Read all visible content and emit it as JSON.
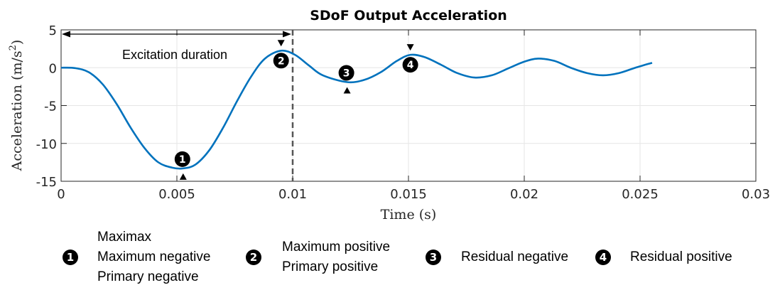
{
  "chart_data": {
    "type": "line",
    "title": "SDoF Output Acceleration",
    "xlabel": "Time (s)",
    "ylabel_main": "Acceleration (m/s",
    "ylabel_sup": "2",
    "ylabel_close": ")",
    "xlim": [
      0,
      0.03
    ],
    "ylim": [
      -15,
      5
    ],
    "xticks": [
      0,
      0.005,
      0.01,
      0.015,
      0.02,
      0.025,
      0.03
    ],
    "xtick_labels": [
      "0",
      "0.005",
      "0.01",
      "0.015",
      "0.02",
      "0.025",
      "0.03"
    ],
    "yticks": [
      5,
      0,
      -5,
      -10,
      -15
    ],
    "ytick_labels": [
      "5",
      "0",
      "-5",
      "-10",
      "-15"
    ],
    "grid": true,
    "series": [
      {
        "name": "SDoF output acceleration",
        "color": "#0072BD",
        "x": [
          0,
          0.0006,
          0.0012,
          0.0018,
          0.0024,
          0.003,
          0.0036,
          0.0042,
          0.0048,
          0.00527,
          0.0058,
          0.0064,
          0.007,
          0.0076,
          0.0082,
          0.0088,
          0.0095,
          0.0101,
          0.0107,
          0.0113,
          0.01235,
          0.0131,
          0.0138,
          0.0145,
          0.01508,
          0.0157,
          0.0164,
          0.0171,
          0.01785,
          0.0186,
          0.0193,
          0.02,
          0.0206,
          0.0213,
          0.022,
          0.0227,
          0.0234,
          0.0241,
          0.0248,
          0.02552
        ],
        "y": [
          0,
          -0.05,
          -0.6,
          -2.2,
          -4.8,
          -7.9,
          -10.6,
          -12.5,
          -13.2,
          -13.3,
          -12.8,
          -10.9,
          -7.9,
          -4.4,
          -1.2,
          1.2,
          2.25,
          1.7,
          0.3,
          -1.0,
          -1.9,
          -1.6,
          -0.6,
          0.9,
          1.7,
          1.4,
          0.4,
          -0.7,
          -1.3,
          -1.0,
          -0.1,
          0.8,
          1.2,
          0.9,
          0.0,
          -0.7,
          -1.0,
          -0.7,
          0.0,
          0.65
        ]
      }
    ],
    "excitation_end": 0.01,
    "annotations": {
      "duration_text": "Excitation duration",
      "markers": [
        {
          "num": "1",
          "x": 0.00527,
          "y": -13.3,
          "arrow": "up"
        },
        {
          "num": "2",
          "x": 0.0095,
          "y": 2.25,
          "arrow": "down"
        },
        {
          "num": "3",
          "x": 0.01235,
          "y": -1.9,
          "arrow": "up"
        },
        {
          "num": "4",
          "x": 0.01508,
          "y": 1.7,
          "arrow": "down"
        }
      ]
    }
  },
  "legend": [
    {
      "num": "1",
      "lines": [
        "Maximax",
        "Maximum negative",
        "Primary negative"
      ]
    },
    {
      "num": "2",
      "lines": [
        "Maximum positive",
        "Primary positive"
      ]
    },
    {
      "num": "3",
      "lines": [
        "Residual negative"
      ]
    },
    {
      "num": "4",
      "lines": [
        "Residual positive"
      ]
    }
  ]
}
